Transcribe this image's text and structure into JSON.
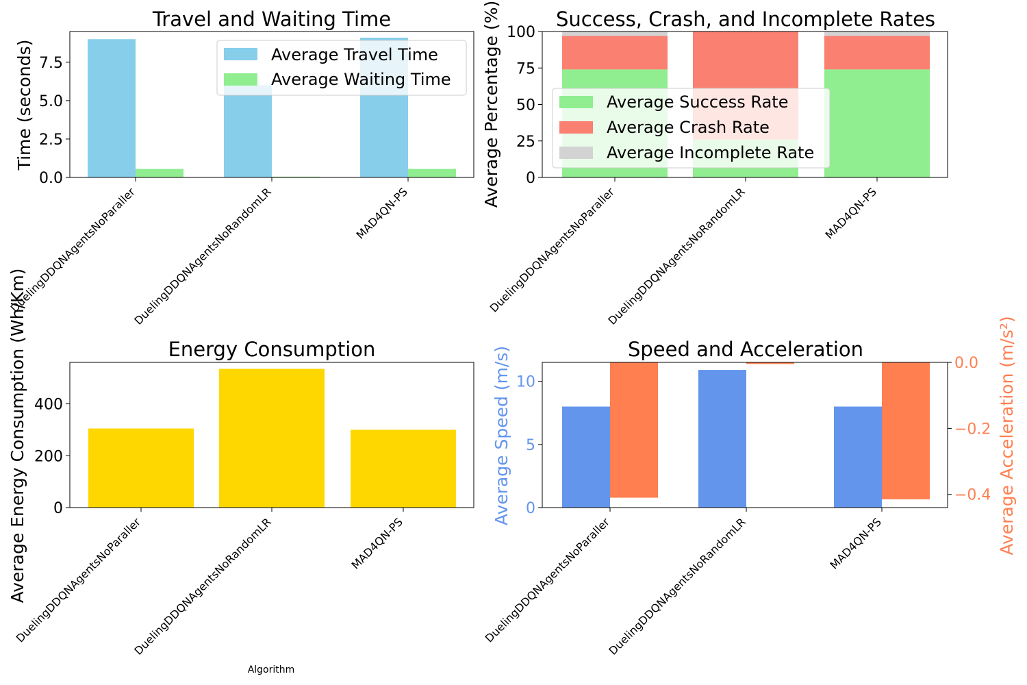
{
  "colors": {
    "travel": "#87CEEB",
    "waiting": "#90EE90",
    "success": "#90EE90",
    "crash": "#FA8072",
    "incomplete": "#D3D3D3",
    "energy": "#FFD700",
    "speed": "#6495ED",
    "accel": "#FF7F50"
  },
  "categories": [
    "DuelingDDQNAgentsNoParaller",
    "DuelingDDQNAgentsNoRandomLR",
    "MAD4QN-PS"
  ],
  "xaxis_title": "Algorithm",
  "chart_data": [
    {
      "type": "bar",
      "title": "Travel and Waiting Time",
      "xlabel": "",
      "ylabel": "Time (seconds)",
      "ylim": [
        0,
        9.5
      ],
      "yticks": [
        "0.0",
        "2.5",
        "5.0",
        "7.5"
      ],
      "legend_position": "upper right",
      "categories": [
        "DuelingDDQNAgentsNoParaller",
        "DuelingDDQNAgentsNoRandomLR",
        "MAD4QN-PS"
      ],
      "series": [
        {
          "name": "Average Travel Time",
          "color": "#87CEEB",
          "values": [
            9.0,
            6.0,
            9.1
          ]
        },
        {
          "name": "Average Waiting Time",
          "color": "#90EE90",
          "values": [
            0.55,
            0.05,
            0.55
          ]
        }
      ]
    },
    {
      "type": "bar",
      "stacked": true,
      "title": "Success, Crash, and Incomplete Rates",
      "xlabel": "",
      "ylabel": "Average Percentage (%)",
      "ylim": [
        0,
        100
      ],
      "yticks": [
        "0",
        "25",
        "50",
        "75",
        "100"
      ],
      "legend_position": "center left",
      "categories": [
        "DuelingDDQNAgentsNoParaller",
        "DuelingDDQNAgentsNoRandomLR",
        "MAD4QN-PS"
      ],
      "series": [
        {
          "name": "Average Success Rate",
          "color": "#90EE90",
          "values": [
            74,
            26,
            74
          ]
        },
        {
          "name": "Average Crash Rate",
          "color": "#FA8072",
          "values": [
            23,
            74,
            23
          ]
        },
        {
          "name": "Average Incomplete Rate",
          "color": "#D3D3D3",
          "values": [
            3,
            0,
            3
          ]
        }
      ]
    },
    {
      "type": "bar",
      "title": "Energy Consumption",
      "xlabel": "Algorithm",
      "ylabel": "Average Energy Consumption (Wh/Km)",
      "ylim": [
        0,
        560
      ],
      "yticks": [
        "0",
        "200",
        "400"
      ],
      "categories": [
        "DuelingDDQNAgentsNoParaller",
        "DuelingDDQNAgentsNoRandomLR",
        "MAD4QN-PS"
      ],
      "series": [
        {
          "color": "#FFD700",
          "values": [
            305,
            535,
            300
          ]
        }
      ]
    },
    {
      "type": "bar",
      "title": "Speed and Acceleration",
      "xlabel": "",
      "ylabel": "Average Speed (m/s)",
      "ylabel_right": "Average Acceleration (m/s²)",
      "ylim": [
        0,
        11.5
      ],
      "ylim_right": [
        -0.44,
        0.0
      ],
      "yticks": [
        "0",
        "5",
        "10"
      ],
      "yticks_right": [
        "0.0",
        "−0.2",
        "−0.4"
      ],
      "categories": [
        "DuelingDDQNAgentsNoParaller",
        "DuelingDDQNAgentsNoRandomLR",
        "MAD4QN-PS"
      ],
      "series": [
        {
          "color": "#6495ED",
          "axis": "left",
          "values": [
            8.0,
            10.9,
            8.0
          ]
        },
        {
          "color": "#FF7F50",
          "axis": "right",
          "values": [
            -0.41,
            -0.005,
            -0.415
          ]
        }
      ]
    }
  ]
}
